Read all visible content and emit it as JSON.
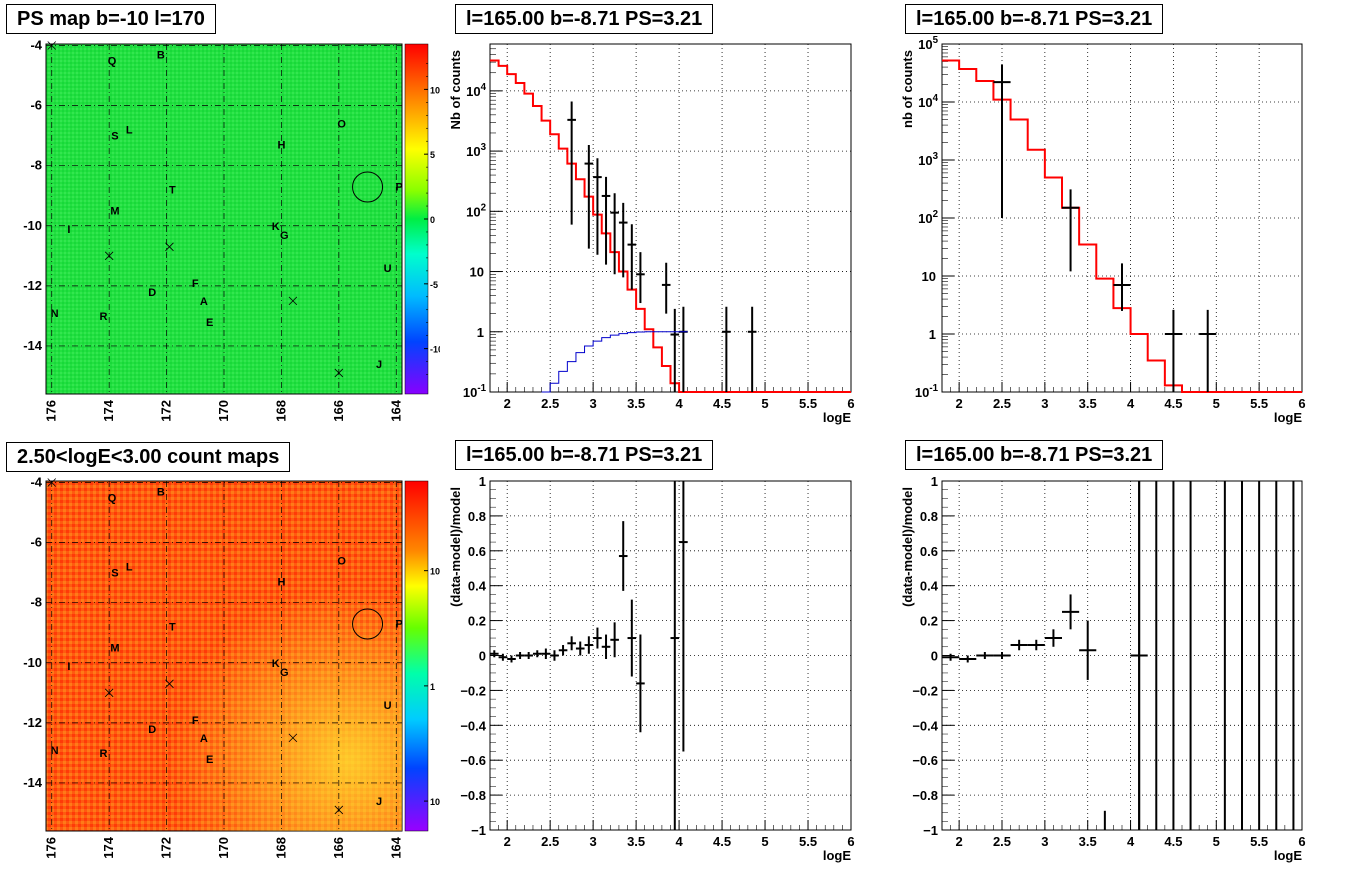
{
  "panels": {
    "ps_map": {
      "title": "PS map b=-10 l=170",
      "x_ticks": [
        "176",
        "174",
        "172",
        "170",
        "168",
        "166",
        "164"
      ],
      "y_ticks": [
        "-4",
        "-6",
        "-8",
        "-10",
        "-12",
        "-14"
      ],
      "colorbar_ticks": [
        "10",
        "5",
        "0",
        "-5",
        "-10"
      ]
    },
    "count_map": {
      "title": "2.50<logE<3.00 count maps",
      "x_ticks": [
        "176",
        "174",
        "172",
        "170",
        "168",
        "166",
        "164"
      ],
      "y_ticks": [
        "-4",
        "-6",
        "-8",
        "-10",
        "-12",
        "-14"
      ],
      "colorbar_ticks": [
        "10",
        "1",
        "10^-1"
      ]
    },
    "spectrum_left": {
      "title": "l=165.00 b=-8.71 PS=3.21",
      "xlabel": "logE",
      "ylabel": "Nb of counts"
    },
    "spectrum_right": {
      "title": "l=165.00 b=-8.71 PS=3.21",
      "xlabel": "logE",
      "ylabel": "nb of counts"
    },
    "resid_left": {
      "title": "l=165.00 b=-8.71 PS=3.21",
      "xlabel": "logE",
      "ylabel": "(data-model)/model"
    },
    "resid_right": {
      "title": "l=165.00 b=-8.71 PS=3.21",
      "xlabel": "logE",
      "ylabel": "(data-model)/model"
    }
  },
  "source_labels": [
    {
      "t": "Q",
      "l": 173.9,
      "b": -4.5
    },
    {
      "t": "B",
      "l": 172.2,
      "b": -4.3
    },
    {
      "t": "O",
      "l": 165.9,
      "b": -6.6
    },
    {
      "t": "S",
      "l": 173.8,
      "b": -7.0
    },
    {
      "t": "L",
      "l": 173.3,
      "b": -6.8
    },
    {
      "t": "H",
      "l": 168.0,
      "b": -7.3
    },
    {
      "t": "P",
      "l": 163.9,
      "b": -8.7
    },
    {
      "t": "T",
      "l": 171.8,
      "b": -8.8
    },
    {
      "t": "M",
      "l": 173.8,
      "b": -9.5
    },
    {
      "t": "K",
      "l": 168.2,
      "b": -10.0
    },
    {
      "t": "G",
      "l": 167.9,
      "b": -10.3
    },
    {
      "t": "I",
      "l": 175.4,
      "b": -10.1
    },
    {
      "t": "U",
      "l": 164.3,
      "b": -11.4
    },
    {
      "t": "F",
      "l": 171.0,
      "b": -11.9
    },
    {
      "t": "D",
      "l": 172.5,
      "b": -12.2
    },
    {
      "t": "A",
      "l": 170.7,
      "b": -12.5
    },
    {
      "t": "R",
      "l": 174.2,
      "b": -13.0
    },
    {
      "t": "E",
      "l": 170.5,
      "b": -13.2
    },
    {
      "t": "N",
      "l": 175.9,
      "b": -12.9
    },
    {
      "t": "J",
      "l": 164.6,
      "b": -14.6
    }
  ],
  "cross_markers": [
    {
      "l": 174.0,
      "b": -11.0
    },
    {
      "l": 171.9,
      "b": -10.7
    },
    {
      "l": 167.6,
      "b": -12.5
    },
    {
      "l": 166.0,
      "b": -14.9
    },
    {
      "l": 176.0,
      "b": -4.0
    }
  ],
  "circle_marker": {
    "l": 165.0,
    "b": -8.71
  },
  "colors": {
    "data": "#000000",
    "model": "#ff0000",
    "exposure": "#0000cc",
    "grid": "#000000"
  },
  "chart_data": [
    {
      "type": "line",
      "title": "l=165.00 b=-8.71 PS=3.21",
      "xlabel": "logE",
      "ylabel": "Nb of counts",
      "xlim": [
        1.8,
        6.0
      ],
      "ylim": [
        0.1,
        60000
      ],
      "yscale": "log",
      "grid": true,
      "y_tick_labels": [
        "10^-1",
        "1",
        "10",
        "10^2",
        "10^3",
        "10^4"
      ],
      "bin_width": 0.1,
      "series": [
        {
          "name": "model",
          "style": "step",
          "x": [
            1.8,
            1.9,
            2.0,
            2.1,
            2.2,
            2.3,
            2.4,
            2.5,
            2.6,
            2.7,
            2.8,
            2.9,
            3.0,
            3.1,
            3.2,
            3.3,
            3.4,
            3.5,
            3.6,
            3.7,
            3.8,
            3.9,
            4.0,
            4.1,
            4.2,
            4.3,
            4.4,
            4.5,
            4.6,
            4.7,
            4.8,
            4.9,
            5.0,
            5.1,
            5.2,
            5.3,
            5.4,
            5.5,
            5.6,
            5.7,
            5.8,
            5.9
          ],
          "y": [
            32000,
            26000,
            19000,
            13500,
            9000,
            5600,
            3200,
            1900,
            1100,
            620,
            340,
            175,
            88,
            43,
            21,
            10,
            5.0,
            2.4,
            1.1,
            0.55,
            0.27,
            0.14,
            0.1,
            0.1,
            0.1,
            0.1,
            0.1,
            0.1,
            0.1,
            0.1,
            0.1,
            0.1,
            0.1,
            0.1,
            0.1,
            0.1,
            0.1,
            0.1,
            0.1,
            0.1,
            0.1,
            0.1
          ]
        },
        {
          "name": "data",
          "style": "errorbar",
          "x": [
            2.75,
            2.95,
            3.05,
            3.15,
            3.25,
            3.35,
            3.45,
            3.55,
            3.85,
            3.95,
            4.05,
            4.55,
            4.85
          ],
          "y": [
            3300,
            620,
            370,
            180,
            95,
            65,
            28,
            9,
            6,
            0.9,
            1.0,
            1.0,
            1.0
          ],
          "yerr_low": [
            3240,
            596,
            351,
            167,
            86,
            57,
            23,
            6,
            4,
            0.8,
            0.9,
            0.9,
            0.9
          ],
          "yerr_high": [
            3360,
            645,
            389,
            193,
            105,
            73,
            33,
            12,
            8,
            1.5,
            1.6,
            1.6,
            1.6
          ]
        },
        {
          "name": "exposure",
          "style": "step",
          "x": [
            2.4,
            2.5,
            2.6,
            2.7,
            2.8,
            2.9,
            3.0,
            3.1,
            3.2,
            3.3,
            3.4,
            3.5,
            3.6,
            3.7,
            3.8,
            3.9,
            4.0
          ],
          "y": [
            0.1,
            0.14,
            0.22,
            0.32,
            0.45,
            0.58,
            0.7,
            0.8,
            0.88,
            0.93,
            0.97,
            0.99,
            1.0,
            1.0,
            1.0,
            1.0,
            1.0
          ]
        }
      ]
    },
    {
      "type": "line",
      "title": "l=165.00 b=-8.71 PS=3.21",
      "xlabel": "logE",
      "ylabel": "nb of counts",
      "xlim": [
        1.8,
        6.0
      ],
      "ylim": [
        0.1,
        100000
      ],
      "yscale": "log",
      "grid": true,
      "y_tick_labels": [
        "10^-1",
        "1",
        "10",
        "10^2",
        "10^3",
        "10^4",
        "10^5"
      ],
      "bin_width": 0.2,
      "series": [
        {
          "name": "model",
          "style": "step",
          "x": [
            1.8,
            2.0,
            2.2,
            2.4,
            2.6,
            2.8,
            3.0,
            3.2,
            3.4,
            3.6,
            3.8,
            4.0,
            4.2,
            4.4,
            4.6,
            4.8,
            5.0,
            5.2,
            5.4,
            5.6,
            5.8
          ],
          "y": [
            52000,
            37000,
            23000,
            11000,
            5000,
            1500,
            500,
            150,
            35,
            9,
            2.8,
            1.0,
            0.35,
            0.13,
            0.1,
            0.1,
            0.1,
            0.1,
            0.1,
            0.1,
            0.1
          ]
        },
        {
          "name": "data",
          "style": "errorbar",
          "x": [
            2.5,
            3.3,
            3.9,
            4.5,
            4.9
          ],
          "y": [
            22000,
            150,
            7,
            1.0,
            1.0
          ],
          "yerr_low": [
            21900,
            138,
            4.5,
            0.9,
            0.9
          ],
          "yerr_high": [
            22100,
            162,
            9.5,
            1.6,
            1.6
          ]
        }
      ]
    },
    {
      "type": "scatter",
      "title": "l=165.00 b=-8.71 PS=3.21",
      "xlabel": "logE",
      "ylabel": "(data-model)/model",
      "xlim": [
        1.8,
        6.0
      ],
      "ylim": [
        -1,
        1
      ],
      "grid": true,
      "x_err": 0.05,
      "points": [
        {
          "x": 1.85,
          "y": 0.01,
          "e": 0.02
        },
        {
          "x": 1.95,
          "y": -0.01,
          "e": 0.02
        },
        {
          "x": 2.05,
          "y": -0.02,
          "e": 0.02
        },
        {
          "x": 2.15,
          "y": 0.0,
          "e": 0.02
        },
        {
          "x": 2.25,
          "y": 0.0,
          "e": 0.02
        },
        {
          "x": 2.35,
          "y": 0.01,
          "e": 0.02
        },
        {
          "x": 2.45,
          "y": 0.01,
          "e": 0.03
        },
        {
          "x": 2.55,
          "y": 0.0,
          "e": 0.03
        },
        {
          "x": 2.65,
          "y": 0.03,
          "e": 0.03
        },
        {
          "x": 2.75,
          "y": 0.07,
          "e": 0.04
        },
        {
          "x": 2.85,
          "y": 0.04,
          "e": 0.04
        },
        {
          "x": 2.95,
          "y": 0.06,
          "e": 0.05
        },
        {
          "x": 3.05,
          "y": 0.1,
          "e": 0.06
        },
        {
          "x": 3.15,
          "y": 0.05,
          "e": 0.07
        },
        {
          "x": 3.25,
          "y": 0.09,
          "e": 0.1
        },
        {
          "x": 3.35,
          "y": 0.57,
          "e": 0.2
        },
        {
          "x": 3.45,
          "y": 0.1,
          "e": 0.22
        },
        {
          "x": 3.55,
          "y": -0.16,
          "e": 0.28
        },
        {
          "x": 3.95,
          "y": 0.1,
          "e": 1.2
        },
        {
          "x": 4.05,
          "y": 0.65,
          "e": 1.2
        }
      ]
    },
    {
      "type": "scatter",
      "title": "l=165.00 b=-8.71 PS=3.21",
      "xlabel": "logE",
      "ylabel": "(data-model)/model",
      "xlim": [
        1.8,
        6.0
      ],
      "ylim": [
        -1,
        1
      ],
      "grid": true,
      "x_err": 0.1,
      "points": [
        {
          "x": 1.9,
          "y": -0.01,
          "e": 0.02
        },
        {
          "x": 2.1,
          "y": -0.02,
          "e": 0.02
        },
        {
          "x": 2.3,
          "y": 0.0,
          "e": 0.02
        },
        {
          "x": 2.5,
          "y": 0.0,
          "e": 0.02
        },
        {
          "x": 2.7,
          "y": 0.06,
          "e": 0.03
        },
        {
          "x": 2.9,
          "y": 0.06,
          "e": 0.03
        },
        {
          "x": 3.1,
          "y": 0.1,
          "e": 0.05
        },
        {
          "x": 3.3,
          "y": 0.25,
          "e": 0.1
        },
        {
          "x": 3.5,
          "y": 0.03,
          "e": 0.17
        },
        {
          "x": 4.1,
          "y": 0.0,
          "e": 1.2
        }
      ],
      "full_range_bars_x": [
        4.1,
        4.3,
        4.5,
        4.7,
        5.1,
        5.3,
        5.5,
        5.7,
        5.9
      ],
      "short_bar": {
        "x": 3.7,
        "y_low": -1,
        "y_high": -0.89
      }
    }
  ]
}
